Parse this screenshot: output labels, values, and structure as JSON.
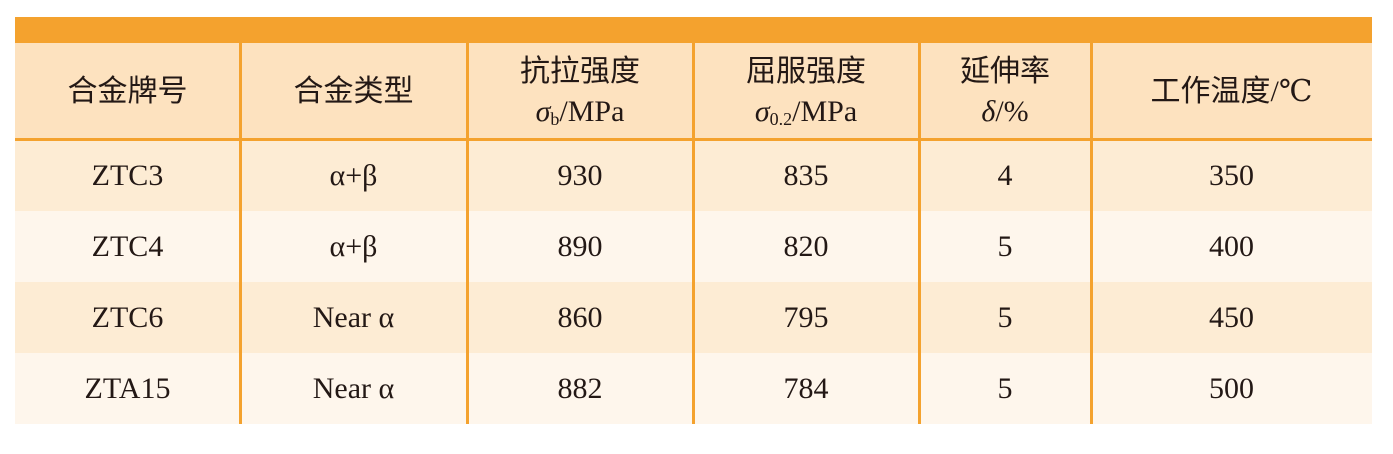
{
  "table": {
    "columns": [
      {
        "label": "合金牌号"
      },
      {
        "label": "合金类型"
      },
      {
        "label": "抗拉强度",
        "symbol": "σ",
        "subscript": "b",
        "unit": "/MPa"
      },
      {
        "label": "屈服强度",
        "symbol": "σ",
        "subscript": "0.2",
        "unit": "/MPa"
      },
      {
        "label": "延伸率",
        "symbol": "δ",
        "unit": "/%"
      },
      {
        "label": "工作温度/℃"
      }
    ],
    "rows": [
      [
        "ZTC3",
        "α+β",
        930,
        835,
        4,
        350
      ],
      [
        "ZTC4",
        "α+β",
        890,
        820,
        5,
        400
      ],
      [
        "ZTC6",
        "Near α",
        860,
        795,
        5,
        450
      ],
      [
        "ZTA15",
        "Near α",
        882,
        784,
        5,
        500
      ]
    ]
  }
}
